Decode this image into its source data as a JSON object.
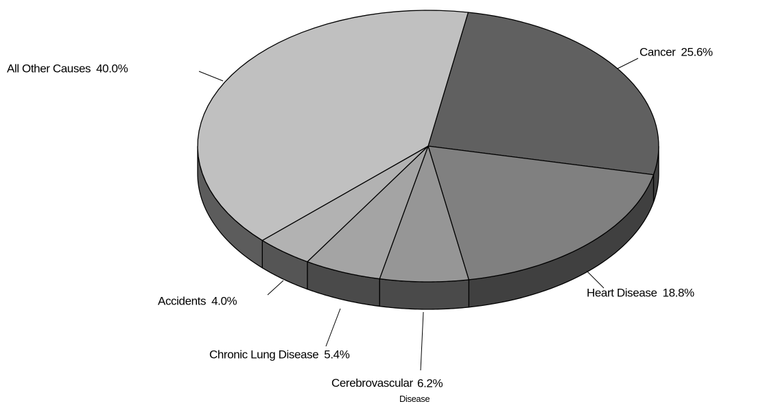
{
  "chart_data": {
    "type": "pie3d",
    "categories": [
      "Cancer",
      "Heart Disease",
      "Cerebrovascular Disease",
      "Chronic Lung Disease",
      "Accidents",
      "All Other Causes"
    ],
    "values": [
      25.6,
      18.8,
      6.2,
      5.4,
      4.0,
      40.0
    ],
    "value_labels": [
      "25.6%",
      "18.8%",
      "6.2%",
      "5.4%",
      "4.0%",
      "40.0%"
    ],
    "colors": [
      "#606060",
      "#808080",
      "#969696",
      "#a4a4a4",
      "#b2b2b2",
      "#c0c0c0"
    ],
    "side_colors": [
      "#404040",
      "#404040",
      "#4a4a4a",
      "#4a4a4a",
      "#555555",
      "#5c5c5c"
    ]
  }
}
